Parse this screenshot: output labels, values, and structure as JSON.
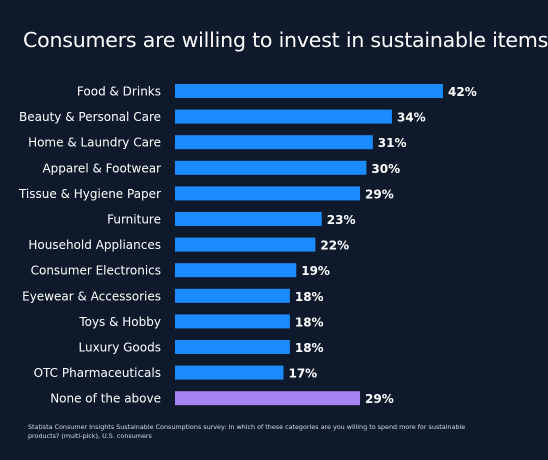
{
  "title": "Consumers are willing to invest in sustainable items",
  "footnote": "Statista Consumer Insights Sustainable Consumptions survey: In which of these categories are you willing to spend more for sustainable products? (multi-pick), U.S. consumers",
  "colors": {
    "background": "#0e1a2c",
    "bar": "#1a8cff",
    "highlight_bar": "#a583f0",
    "text": "#ffffff"
  },
  "chart_data": {
    "type": "bar",
    "orientation": "horizontal",
    "categories": [
      "Food & Drinks",
      "Beauty & Personal Care",
      "Home & Laundry Care",
      "Apparel & Footwear",
      "Tissue & Hygiene Paper",
      "Furniture",
      "Household Appliances",
      "Consumer Electronics",
      "Eyewear & Accessories",
      "Toys & Hobby",
      "Luxury Goods",
      "OTC Pharmaceuticals",
      "None of the above"
    ],
    "values": [
      42,
      34,
      31,
      30,
      29,
      23,
      22,
      19,
      18,
      18,
      18,
      17,
      29
    ],
    "value_labels": [
      "42%",
      "34%",
      "31%",
      "30%",
      "29%",
      "23%",
      "22%",
      "19%",
      "18%",
      "18%",
      "18%",
      "17%",
      "29%"
    ],
    "highlighted_categories": [
      "None of the above"
    ],
    "unit": "%",
    "xlim": [
      0,
      42
    ],
    "grid": false,
    "legend": "none"
  }
}
